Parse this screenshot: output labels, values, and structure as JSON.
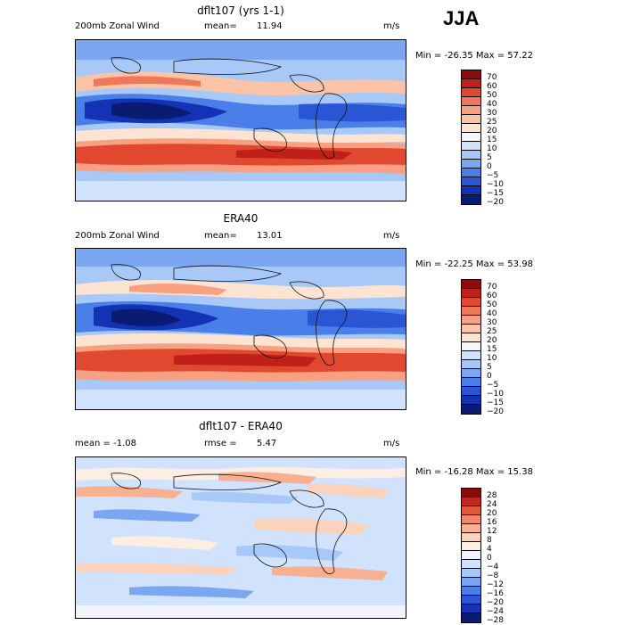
{
  "season": "JJA",
  "panels": [
    {
      "title": "dflt107 (yrs 1-1)",
      "left_label": "200mb Zonal Wind",
      "mean_label": "mean=",
      "mean_value": "11.94",
      "units": "m/s",
      "stats": "Min = -26.35 Max =  57.22",
      "levels": [
        "70",
        "60",
        "50",
        "40",
        "30",
        "25",
        "20",
        "15",
        "10",
        "5",
        "0",
        "−5",
        "−10",
        "−15",
        "−20"
      ]
    },
    {
      "title": "ERA40",
      "left_label": "200mb Zonal Wind",
      "mean_label": "mean=",
      "mean_value": "13.01",
      "units": "m/s",
      "stats": "Min = -22.25 Max =  53.98",
      "levels": [
        "70",
        "60",
        "50",
        "40",
        "30",
        "25",
        "20",
        "15",
        "10",
        "5",
        "0",
        "−5",
        "−10",
        "−15",
        "−20"
      ]
    },
    {
      "title": "dflt107 - ERA40",
      "left_label": "mean =   -1.08",
      "mean_label": "rmse =",
      "mean_value": "5.47",
      "units": "m/s",
      "stats": "Min = -16.28 Max =  15.38",
      "levels": [
        "28",
        "24",
        "20",
        "16",
        "12",
        "8",
        "4",
        "0",
        "−4",
        "−8",
        "−12",
        "−16",
        "−20",
        "−24",
        "−28"
      ]
    }
  ],
  "colors": {
    "wind": [
      "#0a1c72",
      "#1432b4",
      "#2a56d6",
      "#4a7ee8",
      "#7aa6f2",
      "#a8c8f8",
      "#d0e2fc",
      "#f6f6f6",
      "#fde4d2",
      "#fbc4a8",
      "#f7a082",
      "#f0785a",
      "#e04830",
      "#c0201a",
      "#8a0c0c"
    ],
    "diff": [
      "#0a1c72",
      "#1432b4",
      "#2a56d6",
      "#4a7ee8",
      "#7aa6f2",
      "#a8c8f8",
      "#d0e2fc",
      "#f0f4fc",
      "#fdeee4",
      "#fbd2bc",
      "#f7b092",
      "#f08868",
      "#e05838",
      "#c0281c",
      "#8a0c0c"
    ]
  }
}
